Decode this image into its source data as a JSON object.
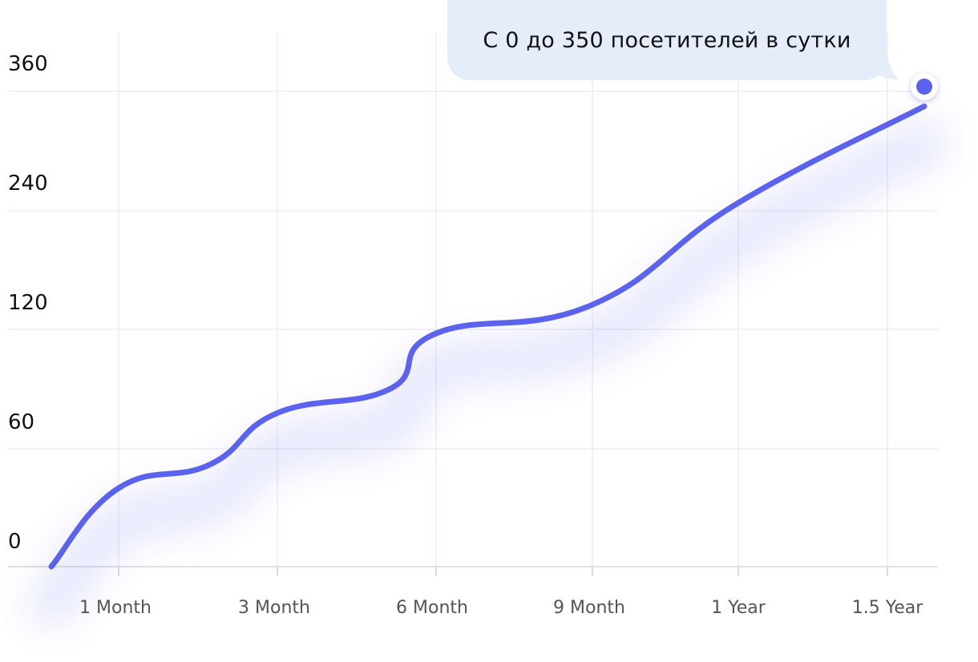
{
  "chart_data": {
    "type": "line",
    "title": "",
    "xlabel": "",
    "ylabel": "",
    "x_categories": [
      "1 Month",
      "3 Month",
      "6 Month",
      "9 Month",
      "1 Year",
      "1.5 Year"
    ],
    "y_ticks": [
      "0",
      "60",
      "120",
      "240",
      "360"
    ],
    "annotation": "С 0 до 350 посетителей в сутки",
    "series": [
      {
        "values": [
          {
            "x": "start",
            "y": 0
          },
          {
            "x": "1 Month",
            "y": 40
          },
          {
            "x": "2 Month",
            "y": 52
          },
          {
            "x": "3 Month",
            "y": 78
          },
          {
            "x": "5 Month",
            "y": 90
          },
          {
            "x": "6 Month",
            "y": 118
          },
          {
            "x": "9 Month",
            "y": 145
          },
          {
            "x": "1 Year",
            "y": 248
          },
          {
            "x": "1.5 Year",
            "y": 345
          }
        ]
      }
    ],
    "line_color": "#5b63ee",
    "grid": true,
    "end_marker": true
  }
}
